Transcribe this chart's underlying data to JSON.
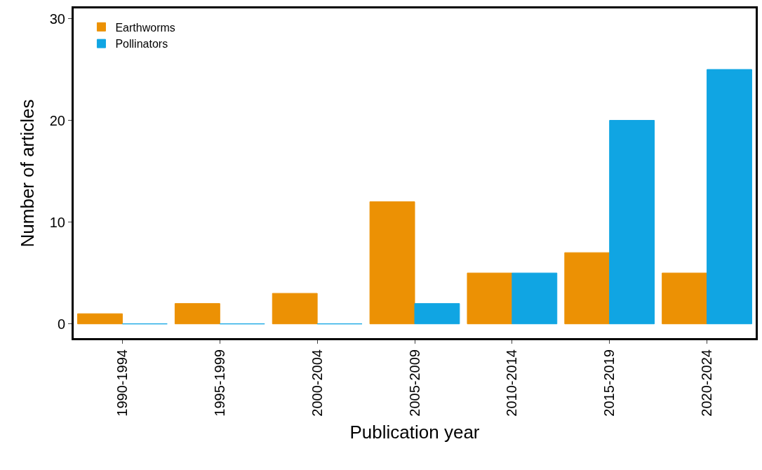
{
  "chart_data": {
    "type": "bar",
    "xlabel": "Publication year",
    "ylabel": "Number of articles",
    "categories": [
      "1990-1994",
      "1995-1999",
      "2000-2004",
      "2005-2009",
      "2010-2014",
      "2015-2019",
      "2020-2024"
    ],
    "series": [
      {
        "name": "Earthworms",
        "color": "#ec9104",
        "values": [
          1,
          2,
          3,
          12,
          5,
          7,
          5
        ]
      },
      {
        "name": "Pollinators",
        "color": "#10a5e3",
        "values": [
          0,
          0,
          0,
          2,
          5,
          20,
          25
        ]
      }
    ],
    "ylim": [
      -1.4,
      31
    ],
    "yticks": [
      0,
      10,
      20,
      30
    ],
    "legend": "top left"
  }
}
